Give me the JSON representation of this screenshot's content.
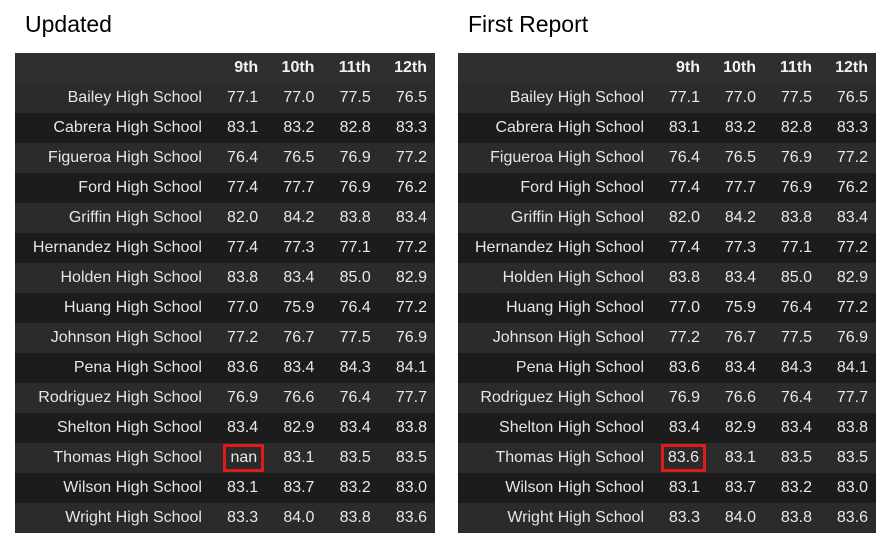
{
  "grades": [
    "9th",
    "10th",
    "11th",
    "12th"
  ],
  "panels": [
    {
      "title": "Updated",
      "highlight": {
        "row": 12,
        "col": 0
      },
      "rows": [
        {
          "school": "Bailey High School",
          "values": [
            "77.1",
            "77.0",
            "77.5",
            "76.5"
          ]
        },
        {
          "school": "Cabrera High School",
          "values": [
            "83.1",
            "83.2",
            "82.8",
            "83.3"
          ]
        },
        {
          "school": "Figueroa High School",
          "values": [
            "76.4",
            "76.5",
            "76.9",
            "77.2"
          ]
        },
        {
          "school": "Ford High School",
          "values": [
            "77.4",
            "77.7",
            "76.9",
            "76.2"
          ]
        },
        {
          "school": "Griffin High School",
          "values": [
            "82.0",
            "84.2",
            "83.8",
            "83.4"
          ]
        },
        {
          "school": "Hernandez High School",
          "values": [
            "77.4",
            "77.3",
            "77.1",
            "77.2"
          ]
        },
        {
          "school": "Holden High School",
          "values": [
            "83.8",
            "83.4",
            "85.0",
            "82.9"
          ]
        },
        {
          "school": "Huang High School",
          "values": [
            "77.0",
            "75.9",
            "76.4",
            "77.2"
          ]
        },
        {
          "school": "Johnson High School",
          "values": [
            "77.2",
            "76.7",
            "77.5",
            "76.9"
          ]
        },
        {
          "school": "Pena High School",
          "values": [
            "83.6",
            "83.4",
            "84.3",
            "84.1"
          ]
        },
        {
          "school": "Rodriguez High School",
          "values": [
            "76.9",
            "76.6",
            "76.4",
            "77.7"
          ]
        },
        {
          "school": "Shelton High School",
          "values": [
            "83.4",
            "82.9",
            "83.4",
            "83.8"
          ]
        },
        {
          "school": "Thomas High School",
          "values": [
            "nan",
            "83.1",
            "83.5",
            "83.5"
          ]
        },
        {
          "school": "Wilson High School",
          "values": [
            "83.1",
            "83.7",
            "83.2",
            "83.0"
          ]
        },
        {
          "school": "Wright High School",
          "values": [
            "83.3",
            "84.0",
            "83.8",
            "83.6"
          ]
        }
      ]
    },
    {
      "title": "First Report",
      "highlight": {
        "row": 12,
        "col": 0
      },
      "rows": [
        {
          "school": "Bailey High School",
          "values": [
            "77.1",
            "77.0",
            "77.5",
            "76.5"
          ]
        },
        {
          "school": "Cabrera High School",
          "values": [
            "83.1",
            "83.2",
            "82.8",
            "83.3"
          ]
        },
        {
          "school": "Figueroa High School",
          "values": [
            "76.4",
            "76.5",
            "76.9",
            "77.2"
          ]
        },
        {
          "school": "Ford High School",
          "values": [
            "77.4",
            "77.7",
            "76.9",
            "76.2"
          ]
        },
        {
          "school": "Griffin High School",
          "values": [
            "82.0",
            "84.2",
            "83.8",
            "83.4"
          ]
        },
        {
          "school": "Hernandez High School",
          "values": [
            "77.4",
            "77.3",
            "77.1",
            "77.2"
          ]
        },
        {
          "school": "Holden High School",
          "values": [
            "83.8",
            "83.4",
            "85.0",
            "82.9"
          ]
        },
        {
          "school": "Huang High School",
          "values": [
            "77.0",
            "75.9",
            "76.4",
            "77.2"
          ]
        },
        {
          "school": "Johnson High School",
          "values": [
            "77.2",
            "76.7",
            "77.5",
            "76.9"
          ]
        },
        {
          "school": "Pena High School",
          "values": [
            "83.6",
            "83.4",
            "84.3",
            "84.1"
          ]
        },
        {
          "school": "Rodriguez High School",
          "values": [
            "76.9",
            "76.6",
            "76.4",
            "77.7"
          ]
        },
        {
          "school": "Shelton High School",
          "values": [
            "83.4",
            "82.9",
            "83.4",
            "83.8"
          ]
        },
        {
          "school": "Thomas High School",
          "values": [
            "83.6",
            "83.1",
            "83.5",
            "83.5"
          ]
        },
        {
          "school": "Wilson High School",
          "values": [
            "83.1",
            "83.7",
            "83.2",
            "83.0"
          ]
        },
        {
          "school": "Wright High School",
          "values": [
            "83.3",
            "84.0",
            "83.8",
            "83.6"
          ]
        }
      ]
    }
  ]
}
